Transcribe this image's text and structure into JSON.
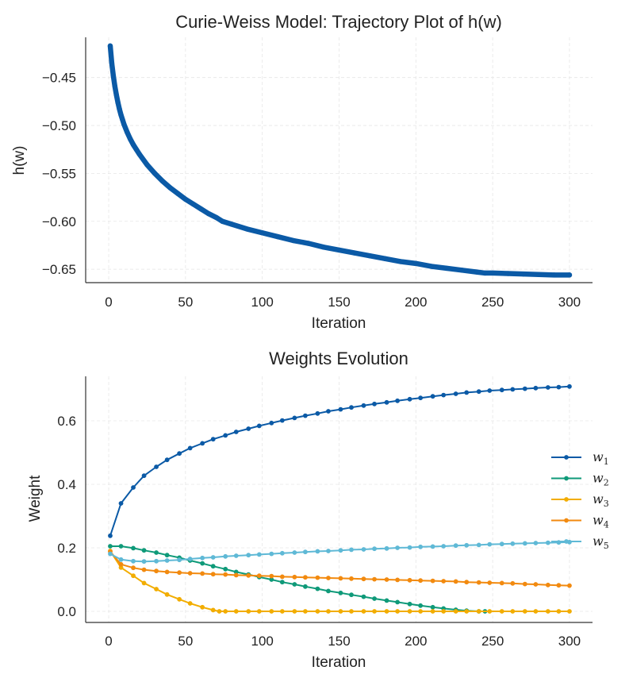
{
  "chart_data": [
    {
      "type": "line",
      "title": "Curie-Weiss Model: Trajectory Plot of h(w)",
      "xlabel": "Iteration",
      "ylabel": "h(w)",
      "xlim": [
        -15,
        315
      ],
      "ylim": [
        -0.664,
        -0.408
      ],
      "xticks": [
        0,
        50,
        100,
        150,
        200,
        250,
        300
      ],
      "yticks": [
        -0.45,
        -0.5,
        -0.55,
        -0.6,
        -0.65
      ],
      "ytick_labels": [
        "−0.45",
        "−0.50",
        "−0.55",
        "−0.60",
        "−0.65"
      ],
      "grid": true,
      "series": [
        {
          "name": "h(w)",
          "color": "#0b5aa6",
          "x": [
            1,
            2,
            3,
            4,
            5,
            6,
            7,
            8,
            9,
            10,
            12,
            14,
            16,
            18,
            20,
            25,
            30,
            35,
            40,
            45,
            50,
            55,
            60,
            65,
            70,
            74,
            80,
            90,
            100,
            110,
            120,
            130,
            140,
            150,
            160,
            170,
            180,
            190,
            200,
            210,
            220,
            230,
            240,
            245,
            250,
            260,
            270,
            280,
            290,
            300
          ],
          "y": [
            -0.417,
            -0.435,
            -0.448,
            -0.459,
            -0.468,
            -0.476,
            -0.483,
            -0.489,
            -0.494,
            -0.499,
            -0.507,
            -0.514,
            -0.52,
            -0.525,
            -0.53,
            -0.541,
            -0.55,
            -0.558,
            -0.565,
            -0.571,
            -0.577,
            -0.582,
            -0.587,
            -0.592,
            -0.596,
            -0.6,
            -0.603,
            -0.608,
            -0.612,
            -0.616,
            -0.62,
            -0.623,
            -0.627,
            -0.63,
            -0.633,
            -0.636,
            -0.639,
            -0.642,
            -0.644,
            -0.647,
            -0.649,
            -0.651,
            -0.653,
            -0.654,
            -0.654,
            -0.6545,
            -0.655,
            -0.6555,
            -0.656,
            -0.656
          ]
        }
      ]
    },
    {
      "type": "line",
      "title": "Weights Evolution",
      "xlabel": "Iteration",
      "ylabel": "Weight",
      "xlim": [
        -15,
        315
      ],
      "ylim": [
        -0.035,
        0.74
      ],
      "xticks": [
        0,
        50,
        100,
        150,
        200,
        250,
        300
      ],
      "yticks": [
        0.0,
        0.2,
        0.4,
        0.6
      ],
      "ytick_labels": [
        "0.0",
        "0.2",
        "0.4",
        "0.6"
      ],
      "grid": true,
      "legend_position": "center-right",
      "series": [
        {
          "name": "w",
          "sub": "1",
          "color": "#0b5aa6",
          "x": [
            1,
            8,
            16,
            23,
            31,
            38,
            46,
            53,
            61,
            68,
            76,
            83,
            91,
            98,
            106,
            113,
            121,
            128,
            136,
            143,
            151,
            158,
            166,
            173,
            181,
            188,
            196,
            203,
            211,
            218,
            226,
            233,
            241,
            248,
            256,
            263,
            271,
            278,
            286,
            293,
            300
          ],
          "y": [
            0.238,
            0.34,
            0.39,
            0.427,
            0.455,
            0.477,
            0.497,
            0.514,
            0.529,
            0.542,
            0.554,
            0.565,
            0.575,
            0.584,
            0.593,
            0.601,
            0.609,
            0.616,
            0.623,
            0.63,
            0.636,
            0.642,
            0.648,
            0.653,
            0.658,
            0.663,
            0.668,
            0.672,
            0.677,
            0.681,
            0.685,
            0.689,
            0.692,
            0.695,
            0.697,
            0.699,
            0.701,
            0.703,
            0.705,
            0.706,
            0.708
          ]
        },
        {
          "name": "w",
          "sub": "2",
          "color": "#0f9a79",
          "x": [
            1,
            8,
            16,
            23,
            31,
            38,
            46,
            53,
            61,
            68,
            76,
            83,
            91,
            98,
            106,
            113,
            121,
            128,
            136,
            143,
            151,
            158,
            166,
            173,
            181,
            188,
            196,
            203,
            211,
            218,
            226,
            233,
            241,
            245
          ],
          "y": [
            0.205,
            0.205,
            0.199,
            0.192,
            0.185,
            0.177,
            0.169,
            0.16,
            0.151,
            0.142,
            0.133,
            0.124,
            0.116,
            0.108,
            0.1,
            0.092,
            0.085,
            0.078,
            0.071,
            0.064,
            0.058,
            0.052,
            0.046,
            0.04,
            0.034,
            0.029,
            0.023,
            0.018,
            0.013,
            0.009,
            0.005,
            0.002,
            0.0,
            0.0
          ]
        },
        {
          "name": "w",
          "sub": "3",
          "color": "#f2ad00",
          "x": [
            1,
            8,
            16,
            23,
            31,
            38,
            46,
            53,
            61,
            68,
            72,
            76,
            83,
            91,
            98,
            106,
            113,
            121,
            128,
            136,
            143,
            151,
            158,
            166,
            173,
            181,
            188,
            196,
            203,
            211,
            218,
            226,
            233,
            241,
            248,
            256,
            263,
            271,
            278,
            286,
            293,
            300
          ],
          "y": [
            0.19,
            0.138,
            0.112,
            0.089,
            0.07,
            0.053,
            0.038,
            0.025,
            0.013,
            0.004,
            0.0,
            0.0,
            0.0,
            0.0,
            0.0,
            0.0,
            0.0,
            0.0,
            0.0,
            0.0,
            0.0,
            0.0,
            0.0,
            0.0,
            0.0,
            0.0,
            0.0,
            0.0,
            0.0,
            0.0,
            0.0,
            0.0,
            0.0,
            0.0,
            0.0,
            0.0,
            0.0,
            0.0,
            0.0,
            0.0,
            0.0,
            0.0
          ]
        },
        {
          "name": "w",
          "sub": "4",
          "color": "#f28a0f",
          "x": [
            1,
            8,
            16,
            23,
            31,
            38,
            46,
            53,
            61,
            68,
            76,
            83,
            91,
            98,
            106,
            113,
            121,
            128,
            136,
            143,
            151,
            158,
            166,
            173,
            181,
            188,
            196,
            203,
            211,
            218,
            226,
            233,
            241,
            248,
            256,
            263,
            271,
            278,
            286,
            293,
            300
          ],
          "y": [
            0.188,
            0.148,
            0.137,
            0.131,
            0.127,
            0.124,
            0.122,
            0.12,
            0.119,
            0.117,
            0.116,
            0.114,
            0.113,
            0.112,
            0.111,
            0.109,
            0.108,
            0.107,
            0.106,
            0.105,
            0.104,
            0.103,
            0.102,
            0.101,
            0.1,
            0.099,
            0.098,
            0.097,
            0.096,
            0.095,
            0.094,
            0.092,
            0.091,
            0.09,
            0.089,
            0.088,
            0.086,
            0.085,
            0.083,
            0.082,
            0.081
          ]
        },
        {
          "name": "w",
          "sub": "5",
          "color": "#5fb9d6",
          "x": [
            1,
            8,
            16,
            23,
            31,
            38,
            46,
            53,
            61,
            68,
            76,
            83,
            91,
            98,
            106,
            113,
            121,
            128,
            136,
            143,
            151,
            158,
            166,
            173,
            181,
            188,
            196,
            203,
            211,
            218,
            226,
            233,
            241,
            248,
            256,
            263,
            271,
            278,
            286,
            293,
            300
          ],
          "y": [
            0.181,
            0.163,
            0.158,
            0.157,
            0.158,
            0.16,
            0.162,
            0.165,
            0.168,
            0.17,
            0.173,
            0.175,
            0.177,
            0.179,
            0.181,
            0.183,
            0.185,
            0.187,
            0.189,
            0.19,
            0.192,
            0.194,
            0.195,
            0.197,
            0.198,
            0.2,
            0.201,
            0.203,
            0.204,
            0.205,
            0.207,
            0.208,
            0.209,
            0.211,
            0.212,
            0.213,
            0.214,
            0.215,
            0.216,
            0.217,
            0.218
          ]
        }
      ]
    }
  ]
}
